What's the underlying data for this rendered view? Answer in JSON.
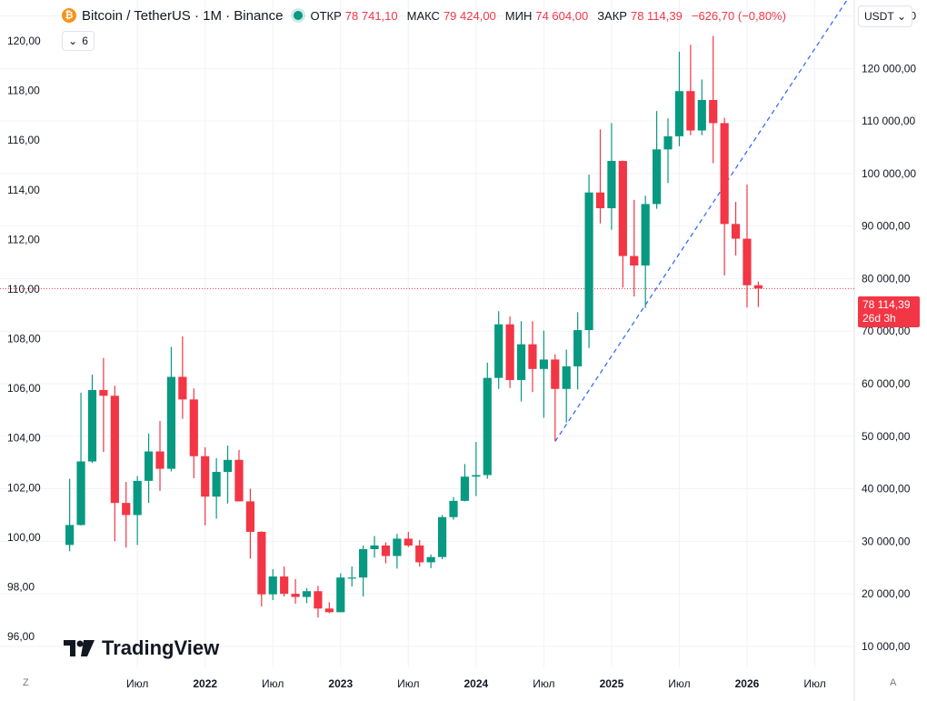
{
  "header": {
    "symbol_icon": "bitcoin-icon",
    "symbol_icon_glyph": "₿",
    "title": "Bitcoin / TetherUS · 1M · Binance",
    "open_label": "ОТКР",
    "open_value": "78 741,10",
    "high_label": "МАКС",
    "high_value": "79 424,00",
    "low_label": "МИН",
    "low_value": "74 604,00",
    "close_label": "ЗАКР",
    "close_value": "78 114,39",
    "change_value": "−626,70 (−0,80%)"
  },
  "indicators_toggle": {
    "icon": "chevron-down-icon",
    "count": "6"
  },
  "currency_button": {
    "label": "USDT",
    "icon": "chevron-down-icon"
  },
  "price_tag": {
    "price": "78 114,39",
    "countdown": "26d 3h"
  },
  "logo": {
    "text": "TradingView"
  },
  "corner_buttons": {
    "left": "Z",
    "right": "A"
  },
  "colors": {
    "up": "#089981",
    "down": "#f23645",
    "trendline": "#2962ff",
    "grid": "#f0f3fa",
    "text": "#131722"
  },
  "chart_data": {
    "type": "candlestick",
    "title": "Bitcoin / TetherUS · 1M · Binance",
    "interval": "1M",
    "grid": true,
    "left_axis": {
      "ticks": [
        96,
        98,
        100,
        102,
        104,
        106,
        108,
        110,
        112,
        114,
        116,
        118,
        120
      ],
      "tick_labels": [
        "96,00",
        "98,00",
        "100,00",
        "102,00",
        "104,00",
        "106,00",
        "108,00",
        "110,00",
        "112,00",
        "114,00",
        "116,00",
        "118,00",
        "120,00"
      ]
    },
    "right_axis": {
      "currency": "USDT",
      "ticks": [
        10000,
        20000,
        30000,
        40000,
        50000,
        60000,
        70000,
        80000,
        90000,
        100000,
        110000,
        120000,
        130000
      ],
      "tick_labels": [
        "10 000,00",
        "20 000,00",
        "30 000,00",
        "40 000,00",
        "50 000,00",
        "60 000,00",
        "70 000,00",
        "80 000,00",
        "90 000,00",
        "100 000,00",
        "110 000,00",
        "120 000,00",
        "130 000,00"
      ],
      "ylim": [
        6000,
        132000
      ]
    },
    "x_ticks": [
      {
        "label": "Июл",
        "month": "2021-07"
      },
      {
        "label": "2022",
        "month": "2022-01"
      },
      {
        "label": "Июл",
        "month": "2022-07"
      },
      {
        "label": "2023",
        "month": "2023-01"
      },
      {
        "label": "Июл",
        "month": "2023-07"
      },
      {
        "label": "2024",
        "month": "2024-01"
      },
      {
        "label": "Июл",
        "month": "2024-07"
      },
      {
        "label": "2025",
        "month": "2025-01"
      },
      {
        "label": "Июл",
        "month": "2025-07"
      },
      {
        "label": "2026",
        "month": "2026-01"
      },
      {
        "label": "Июл",
        "month": "2026-07"
      }
    ],
    "x_range": [
      "2020-12",
      "2026-10"
    ],
    "candles": [
      {
        "month": "2021-01",
        "o": 29300,
        "h": 41900,
        "l": 28100,
        "c": 33100
      },
      {
        "month": "2021-02",
        "o": 33100,
        "h": 58300,
        "l": 33000,
        "c": 45200
      },
      {
        "month": "2021-03",
        "o": 45200,
        "h": 61700,
        "l": 44900,
        "c": 58800
      },
      {
        "month": "2021-04",
        "o": 58800,
        "h": 64900,
        "l": 47000,
        "c": 57700
      },
      {
        "month": "2021-05",
        "o": 57700,
        "h": 59600,
        "l": 30000,
        "c": 37300
      },
      {
        "month": "2021-06",
        "o": 37300,
        "h": 41300,
        "l": 28800,
        "c": 35000
      },
      {
        "month": "2021-07",
        "o": 35000,
        "h": 42400,
        "l": 29300,
        "c": 41500
      },
      {
        "month": "2021-08",
        "o": 41500,
        "h": 50500,
        "l": 37300,
        "c": 47100
      },
      {
        "month": "2021-09",
        "o": 47100,
        "h": 52900,
        "l": 39600,
        "c": 43800
      },
      {
        "month": "2021-10",
        "o": 43800,
        "h": 67000,
        "l": 43300,
        "c": 61300
      },
      {
        "month": "2021-11",
        "o": 61300,
        "h": 69000,
        "l": 53300,
        "c": 57000
      },
      {
        "month": "2021-12",
        "o": 57000,
        "h": 59100,
        "l": 42000,
        "c": 46200
      },
      {
        "month": "2022-01",
        "o": 46200,
        "h": 47900,
        "l": 33000,
        "c": 38500
      },
      {
        "month": "2022-02",
        "o": 38500,
        "h": 45800,
        "l": 34300,
        "c": 43200
      },
      {
        "month": "2022-03",
        "o": 43200,
        "h": 48200,
        "l": 37200,
        "c": 45500
      },
      {
        "month": "2022-04",
        "o": 45500,
        "h": 47400,
        "l": 37600,
        "c": 37600
      },
      {
        "month": "2022-05",
        "o": 37600,
        "h": 40000,
        "l": 26700,
        "c": 31800
      },
      {
        "month": "2022-06",
        "o": 31800,
        "h": 31900,
        "l": 17600,
        "c": 19900
      },
      {
        "month": "2022-07",
        "o": 19900,
        "h": 24700,
        "l": 18800,
        "c": 23300
      },
      {
        "month": "2022-08",
        "o": 23300,
        "h": 25200,
        "l": 19500,
        "c": 20000
      },
      {
        "month": "2022-09",
        "o": 20000,
        "h": 22800,
        "l": 18100,
        "c": 19400
      },
      {
        "month": "2022-10",
        "o": 19400,
        "h": 21100,
        "l": 18200,
        "c": 20500
      },
      {
        "month": "2022-11",
        "o": 20500,
        "h": 21500,
        "l": 15500,
        "c": 17200
      },
      {
        "month": "2022-12",
        "o": 17200,
        "h": 18400,
        "l": 16300,
        "c": 16500
      },
      {
        "month": "2023-01",
        "o": 16500,
        "h": 23900,
        "l": 16500,
        "c": 23100
      },
      {
        "month": "2023-02",
        "o": 23100,
        "h": 25200,
        "l": 21400,
        "c": 23100
      },
      {
        "month": "2023-03",
        "o": 23100,
        "h": 29200,
        "l": 19500,
        "c": 28500
      },
      {
        "month": "2023-04",
        "o": 28500,
        "h": 31000,
        "l": 26900,
        "c": 29200
      },
      {
        "month": "2023-05",
        "o": 29200,
        "h": 29800,
        "l": 25800,
        "c": 27200
      },
      {
        "month": "2023-06",
        "o": 27200,
        "h": 31400,
        "l": 24800,
        "c": 30500
      },
      {
        "month": "2023-07",
        "o": 30500,
        "h": 31800,
        "l": 28900,
        "c": 29200
      },
      {
        "month": "2023-08",
        "o": 29200,
        "h": 30200,
        "l": 25200,
        "c": 26000
      },
      {
        "month": "2023-09",
        "o": 26000,
        "h": 27500,
        "l": 24900,
        "c": 27000
      },
      {
        "month": "2023-10",
        "o": 27000,
        "h": 35000,
        "l": 26600,
        "c": 34600
      },
      {
        "month": "2023-11",
        "o": 34600,
        "h": 38400,
        "l": 34100,
        "c": 37700
      },
      {
        "month": "2023-12",
        "o": 37700,
        "h": 44700,
        "l": 37600,
        "c": 42300
      },
      {
        "month": "2024-01",
        "o": 42300,
        "h": 48900,
        "l": 38600,
        "c": 42600
      },
      {
        "month": "2024-02",
        "o": 42600,
        "h": 64000,
        "l": 41900,
        "c": 61100
      },
      {
        "month": "2024-03",
        "o": 61100,
        "h": 73800,
        "l": 59000,
        "c": 71300
      },
      {
        "month": "2024-04",
        "o": 71300,
        "h": 72800,
        "l": 59200,
        "c": 60700
      },
      {
        "month": "2024-05",
        "o": 60700,
        "h": 71900,
        "l": 56600,
        "c": 67500
      },
      {
        "month": "2024-06",
        "o": 67500,
        "h": 71900,
        "l": 58400,
        "c": 62800
      },
      {
        "month": "2024-07",
        "o": 62800,
        "h": 70100,
        "l": 53500,
        "c": 64600
      },
      {
        "month": "2024-08",
        "o": 64600,
        "h": 65600,
        "l": 49100,
        "c": 59000
      },
      {
        "month": "2024-09",
        "o": 59000,
        "h": 66500,
        "l": 52600,
        "c": 63300
      },
      {
        "month": "2024-10",
        "o": 63300,
        "h": 73600,
        "l": 58900,
        "c": 70200
      },
      {
        "month": "2024-11",
        "o": 70200,
        "h": 99800,
        "l": 66800,
        "c": 96400
      },
      {
        "month": "2024-12",
        "o": 96400,
        "h": 108400,
        "l": 90500,
        "c": 93400
      },
      {
        "month": "2025-01",
        "o": 93400,
        "h": 109600,
        "l": 89300,
        "c": 102400
      },
      {
        "month": "2025-02",
        "o": 102400,
        "h": 102500,
        "l": 78300,
        "c": 84300
      },
      {
        "month": "2025-03",
        "o": 84300,
        "h": 95000,
        "l": 76600,
        "c": 82500
      },
      {
        "month": "2025-04",
        "o": 82500,
        "h": 95800,
        "l": 74400,
        "c": 94200
      },
      {
        "month": "2025-05",
        "o": 94200,
        "h": 111900,
        "l": 93300,
        "c": 104600
      },
      {
        "month": "2025-06",
        "o": 104600,
        "h": 110500,
        "l": 98200,
        "c": 107100
      },
      {
        "month": "2025-07",
        "o": 107100,
        "h": 123200,
        "l": 105200,
        "c": 115700
      },
      {
        "month": "2025-08",
        "o": 115700,
        "h": 124500,
        "l": 107300,
        "c": 108200
      },
      {
        "month": "2025-09",
        "o": 108200,
        "h": 117900,
        "l": 107300,
        "c": 114000
      },
      {
        "month": "2025-10",
        "o": 114000,
        "h": 126200,
        "l": 102000,
        "c": 109600
      },
      {
        "month": "2025-11",
        "o": 109600,
        "h": 110600,
        "l": 80600,
        "c": 90400
      },
      {
        "month": "2025-12",
        "o": 90400,
        "h": 94600,
        "l": 84400,
        "c": 87600
      },
      {
        "month": "2026-01",
        "o": 87600,
        "h": 97900,
        "l": 74500,
        "c": 78741
      },
      {
        "month": "2026-02",
        "o": 78741,
        "h": 79424,
        "l": 74604,
        "c": 78114
      }
    ],
    "last_price": 78114.39,
    "trendline": {
      "from": {
        "month": "2024-08",
        "price": 49000
      },
      "to": {
        "month": "2026-10",
        "price": 133500
      }
    }
  }
}
